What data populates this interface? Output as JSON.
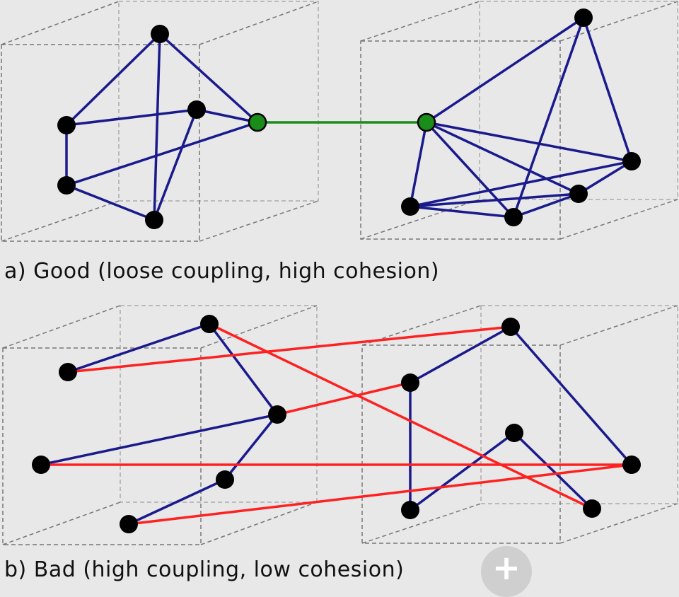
{
  "captions": {
    "a": "a) Good (loose coupling, high cohesion)",
    "b": "b) Bad (high coupling, low cohesion)"
  },
  "colors": {
    "background": "#e8e8e8",
    "cohesion_edge": "#1a1a8c",
    "good_coupling_edge": "#1a8c1a",
    "bad_coupling_edge": "#ff2020",
    "node": "#000000",
    "interface_node": "#1a8c1a",
    "box_outline": "#555555"
  },
  "zoom_button": {
    "icon": "plus-icon",
    "label": "+"
  }
}
